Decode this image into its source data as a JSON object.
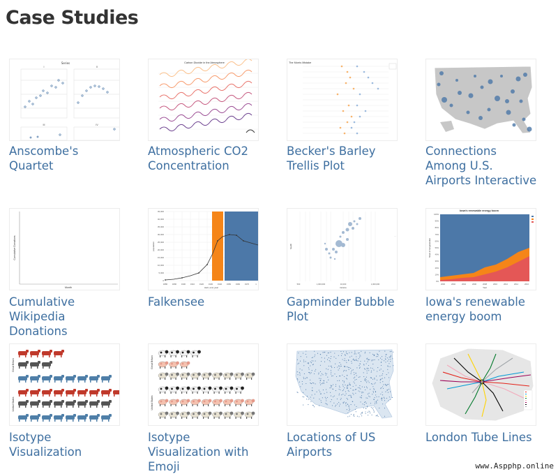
{
  "page": {
    "title": "Case Studies"
  },
  "cases": [
    {
      "title": "Anscombe's Quartet",
      "thumb_title": "Series",
      "panels": [
        "I",
        "II",
        "III",
        "IV"
      ]
    },
    {
      "title": "Atmospheric CO2 Concentration",
      "thumb_title": "Carbon Dioxide in the Atmosphere"
    },
    {
      "title": "Becker's Barley Trellis Plot",
      "thumb_title": "The Morris Mistake"
    },
    {
      "title": "Connections Among U.S. Airports Interactive"
    },
    {
      "title": "Cumulative Wikipedia Donations",
      "ylabel": "Cumulative Donations",
      "xlabel": "Month"
    },
    {
      "title": "Falkensee",
      "ylabel": "population",
      "xlabel": "start, end, year",
      "yticks": [
        "45,000",
        "40,000",
        "35,000",
        "30,000",
        "25,000",
        "20,000",
        "15,000",
        "10,000",
        "5,000",
        "0"
      ],
      "xticks": [
        "1880",
        "1890",
        "1900",
        "1910",
        "1920",
        "1930",
        "1940",
        "1950",
        "1960",
        "1970",
        "1"
      ]
    },
    {
      "title": "Gapminder Bubble Plot",
      "xlabel": "income",
      "ylabel": "health",
      "xticks": [
        "500",
        "1,000,000",
        "10,000",
        "1,000,000"
      ]
    },
    {
      "title": "Iowa's renewable energy boom",
      "thumb_title": "Iowa's renewable energy boom",
      "yticks": [
        "100%",
        "90%",
        "80%",
        "70%",
        "60%",
        "50%",
        "40%",
        "30%",
        "20%",
        "10%",
        "0%"
      ],
      "xticks": [
        "2000",
        "2002",
        "2004",
        "2006",
        "2008",
        "2010",
        "2012",
        "2014",
        "2016"
      ],
      "ylabel": "Share of net generation",
      "xlabel": "Year"
    },
    {
      "title": "Isotype Visualization",
      "groups": [
        "Great Britain",
        "United States"
      ]
    },
    {
      "title": "Isotype Visualization with Emoji",
      "groups": [
        "Great Britain",
        "United States"
      ]
    },
    {
      "title": "Locations of US Airports"
    },
    {
      "title": "London Tube Lines"
    }
  ],
  "colors": {
    "link": "#3e6fa0",
    "steel": "#4c78a8",
    "orange": "#f58518",
    "red": "#e45756",
    "cattle": "#c0392b",
    "pig": "#555555",
    "sheep": "#4f7fa8"
  },
  "watermark": "www.Aspphp.online"
}
